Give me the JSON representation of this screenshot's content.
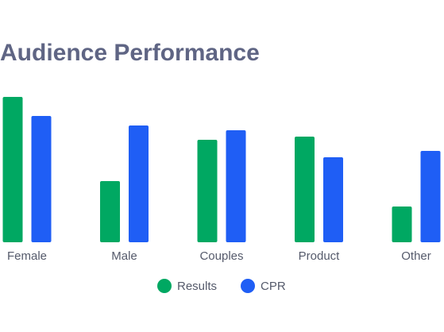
{
  "chart_data": {
    "type": "bar",
    "title": "Audience Performance",
    "categories": [
      "Female",
      "Male",
      "Couples",
      "Product",
      "Other"
    ],
    "series": [
      {
        "name": "Results",
        "color": "#00a862",
        "values": [
          183,
          77,
          129,
          133,
          45
        ]
      },
      {
        "name": "CPR",
        "color": "#1f5ef5",
        "values": [
          159,
          147,
          141,
          107,
          115
        ]
      }
    ]
  }
}
